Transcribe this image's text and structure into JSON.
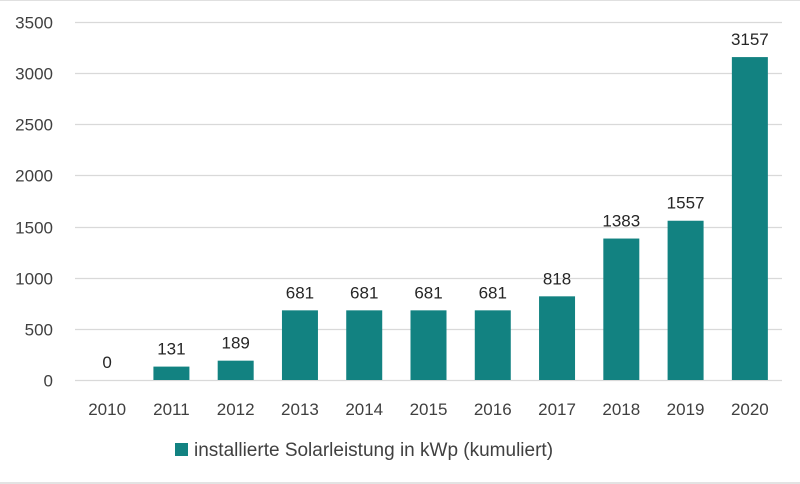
{
  "chart_data": {
    "type": "bar",
    "title": "",
    "xlabel": "",
    "ylabel": "",
    "categories": [
      "2010",
      "2011",
      "2012",
      "2013",
      "2014",
      "2015",
      "2016",
      "2017",
      "2018",
      "2019",
      "2020"
    ],
    "series": [
      {
        "name": "installierte Solarleistung in kWp (kumuliert)",
        "values": [
          0,
          131,
          189,
          681,
          681,
          681,
          681,
          818,
          1383,
          1557,
          3157
        ],
        "color": "#128281"
      }
    ],
    "data_labels": [
      "0",
      "131",
      "189",
      "681",
      "681",
      "681",
      "681",
      "818",
      "1383",
      "1557",
      "3157"
    ],
    "ylim": [
      0,
      3500
    ],
    "yticks": [
      0,
      500,
      1000,
      1500,
      2000,
      2500,
      3000,
      3500
    ],
    "ytick_labels": [
      "0",
      "500",
      "1000",
      "1500",
      "2000",
      "2500",
      "3000",
      "3500"
    ],
    "grid": true,
    "legend": {
      "position": "bottom",
      "entries": [
        "installierte Solarleistung in kWp (kumuliert)"
      ]
    }
  }
}
